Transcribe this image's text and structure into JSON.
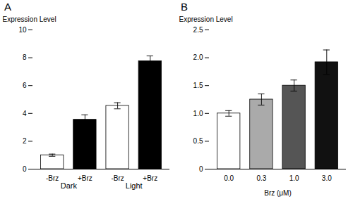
{
  "chart_data": [
    {
      "type": "bar",
      "title": "A",
      "categories": [
        "-Brz",
        "+Brz",
        "-Brz",
        "+Brz"
      ],
      "groups": [
        "Dark",
        "Dark",
        "Light",
        "Light"
      ],
      "values": [
        1.0,
        3.55,
        4.55,
        7.75
      ],
      "errors": [
        0.08,
        0.35,
        0.22,
        0.38
      ],
      "colors": [
        "#ffffff",
        "#000000",
        "#ffffff",
        "#000000"
      ],
      "ylabel": "Expression Level",
      "ylim": [
        0,
        10
      ],
      "yticks": [
        0,
        2,
        4,
        6,
        8,
        10
      ]
    },
    {
      "type": "bar",
      "title": "B",
      "categories": [
        "0.0",
        "0.3",
        "1.0",
        "3.0"
      ],
      "values": [
        1.0,
        1.25,
        1.5,
        1.92
      ],
      "errors": [
        0.05,
        0.1,
        0.1,
        0.22
      ],
      "colors": [
        "#ffffff",
        "#aaaaaa",
        "#555555",
        "#111111"
      ],
      "ylabel": "Expression Level",
      "xlabel": "Brz (μM)",
      "ylim": [
        0,
        2.5
      ],
      "yticks": [
        0,
        0.5,
        {
          "value": 1.0,
          "label": "1.0"
        },
        1.5,
        {
          "value": 2.0,
          "label": "2.0"
        },
        2.5
      ]
    }
  ]
}
